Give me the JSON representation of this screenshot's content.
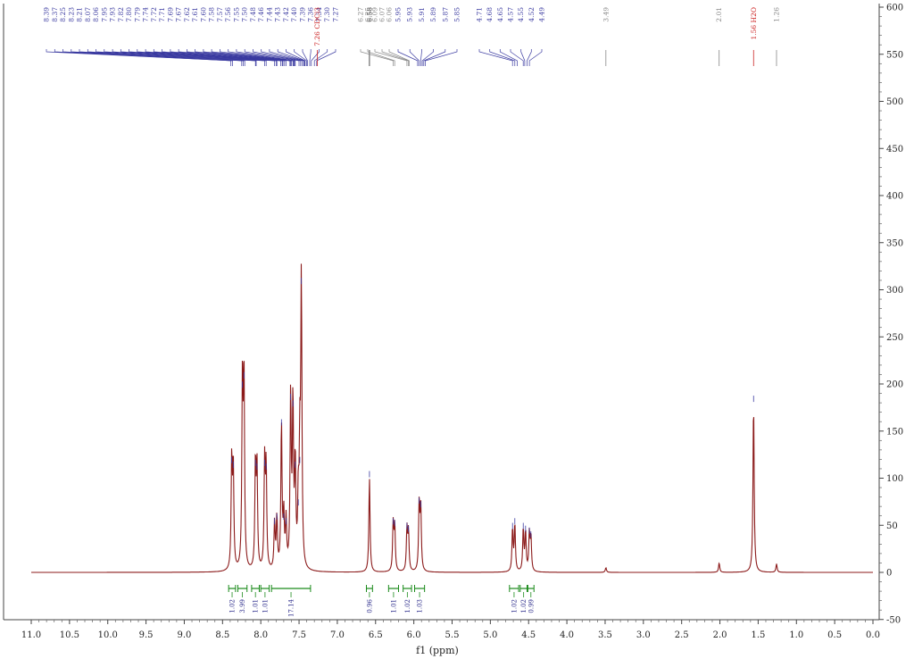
{
  "chart_data": {
    "type": "line",
    "title": "",
    "xlabel": "f1 (ppm)",
    "ylabel": "",
    "xlim": [
      11.0,
      0.0
    ],
    "ylim": [
      -50,
      600
    ],
    "x_ticks": [
      "11.0",
      "10.5",
      "10.0",
      "9.5",
      "9.0",
      "8.5",
      "8.0",
      "7.5",
      "7.0",
      "6.5",
      "6.0",
      "5.5",
      "5.0",
      "4.5",
      "4.0",
      "3.5",
      "3.0",
      "2.5",
      "2.0",
      "1.5",
      "1.0",
      "0.5",
      "0.0"
    ],
    "y_ticks": [
      "-50",
      "0",
      "50",
      "100",
      "150",
      "200",
      "250",
      "300",
      "350",
      "400",
      "450",
      "500",
      "550",
      "600"
    ],
    "peaks": [
      {
        "ppm": 8.38,
        "height": 115
      },
      {
        "ppm": 8.36,
        "height": 110
      },
      {
        "ppm": 8.24,
        "height": 195
      },
      {
        "ppm": 8.22,
        "height": 205
      },
      {
        "ppm": 8.07,
        "height": 112
      },
      {
        "ppm": 8.05,
        "height": 108
      },
      {
        "ppm": 7.95,
        "height": 112
      },
      {
        "ppm": 7.93,
        "height": 108
      },
      {
        "ppm": 7.82,
        "height": 50
      },
      {
        "ppm": 7.79,
        "height": 55
      },
      {
        "ppm": 7.73,
        "height": 155
      },
      {
        "ppm": 7.7,
        "height": 55
      },
      {
        "ppm": 7.67,
        "height": 50
      },
      {
        "ppm": 7.61,
        "height": 182
      },
      {
        "ppm": 7.58,
        "height": 175
      },
      {
        "ppm": 7.55,
        "height": 110
      },
      {
        "ppm": 7.51,
        "height": 70
      },
      {
        "ppm": 7.49,
        "height": 115
      },
      {
        "ppm": 7.47,
        "height": 305
      },
      {
        "ppm": 6.58,
        "height": 100
      },
      {
        "ppm": 6.27,
        "height": 50
      },
      {
        "ppm": 6.25,
        "height": 48
      },
      {
        "ppm": 6.09,
        "height": 45
      },
      {
        "ppm": 6.07,
        "height": 42
      },
      {
        "ppm": 5.93,
        "height": 72
      },
      {
        "ppm": 5.91,
        "height": 68
      },
      {
        "ppm": 4.71,
        "height": 45
      },
      {
        "ppm": 4.68,
        "height": 50
      },
      {
        "ppm": 4.57,
        "height": 45
      },
      {
        "ppm": 4.54,
        "height": 42
      },
      {
        "ppm": 4.49,
        "height": 40
      },
      {
        "ppm": 4.47,
        "height": 36
      },
      {
        "ppm": 3.49,
        "height": 5
      },
      {
        "ppm": 2.01,
        "height": 10
      },
      {
        "ppm": 1.56,
        "height": 180
      },
      {
        "ppm": 1.26,
        "height": 9
      }
    ],
    "peak_labels": {
      "blue_left": [
        "8.39",
        "8.37",
        "8.25",
        "8.23",
        "8.21",
        "8.07",
        "8.06",
        "7.95",
        "7.93",
        "7.82",
        "7.80",
        "7.79",
        "7.74",
        "7.72",
        "7.71",
        "7.69",
        "7.67",
        "7.62",
        "7.61",
        "7.60",
        "7.58",
        "7.57",
        "7.56",
        "7.55",
        "7.50",
        "7.48",
        "7.46",
        "7.44",
        "7.43",
        "7.42",
        "7.40",
        "7.39",
        "7.36",
        "7.34",
        "7.30",
        "7.27"
      ],
      "red_cdcl3": "7.26 CDCl3",
      "black_single": "6.58",
      "gray_group": [
        "6.27",
        "6.25",
        "6.09",
        "6.07",
        "6.06"
      ],
      "blue_mid": [
        "5.95",
        "5.93",
        "5.91",
        "5.89",
        "5.87",
        "5.85"
      ],
      "blue_right": [
        "4.71",
        "4.68",
        "4.65",
        "4.57",
        "4.55",
        "4.52",
        "4.49"
      ],
      "gray_349": "3.49",
      "gray_201": "2.01",
      "red_water": "1.56 H2O",
      "gray_126": "1.26"
    },
    "integrals": [
      {
        "from": 8.42,
        "to": 8.33,
        "value": "1.02"
      },
      {
        "from": 8.3,
        "to": 8.18,
        "value": "3.99"
      },
      {
        "from": 8.12,
        "to": 8.02,
        "value": "1.01"
      },
      {
        "from": 8.0,
        "to": 7.89,
        "value": "1.01"
      },
      {
        "from": 7.86,
        "to": 7.35,
        "value": "17.14"
      },
      {
        "from": 6.62,
        "to": 6.54,
        "value": "0.96"
      },
      {
        "from": 6.33,
        "to": 6.2,
        "value": "1.01"
      },
      {
        "from": 6.14,
        "to": 6.03,
        "value": "1.02"
      },
      {
        "from": 5.99,
        "to": 5.86,
        "value": "1.03"
      },
      {
        "from": 4.75,
        "to": 4.63,
        "value": "1.02"
      },
      {
        "from": 4.61,
        "to": 4.52,
        "value": "1.02"
      },
      {
        "from": 4.51,
        "to": 4.43,
        "value": "0.99"
      }
    ],
    "colors": {
      "spectrum": "#8b1a1a",
      "label_blue": "#3a3aa0",
      "label_red": "#cc2222",
      "label_gray": "#888888",
      "integral": "#1a8a1a"
    },
    "grid": false
  }
}
